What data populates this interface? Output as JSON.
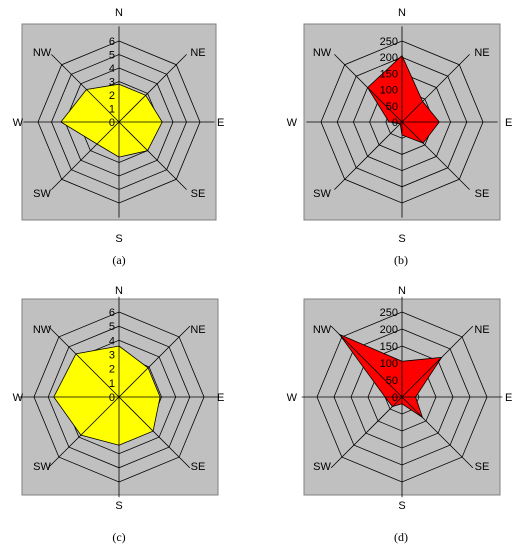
{
  "chart_data": [
    {
      "type": "radar",
      "panel_label": "(a)",
      "categories": [
        "N",
        "NE",
        "E",
        "SE",
        "S",
        "SW",
        "W",
        "NW"
      ],
      "values": [
        2.8,
        2.8,
        3.2,
        3.0,
        2.6,
        2.3,
        4.3,
        3.4
      ],
      "ticks": [
        "0",
        "1",
        "2",
        "3",
        "4",
        "5",
        "6"
      ],
      "rmax": 6,
      "fill": "#ffff00",
      "stroke": "#000000"
    },
    {
      "type": "radar",
      "panel_label": "(b)",
      "categories": [
        "N",
        "NE",
        "E",
        "SE",
        "S",
        "SW",
        "W",
        "NW"
      ],
      "values": [
        205,
        90,
        115,
        92,
        40,
        8,
        40,
        150
      ],
      "ticks": [
        "0",
        "50",
        "100",
        "150",
        "200",
        "250"
      ],
      "rmax": 250,
      "fill": "#ff0000",
      "stroke": "#000000"
    },
    {
      "type": "radar",
      "panel_label": "(c)",
      "categories": [
        "N",
        "NE",
        "E",
        "SE",
        "S",
        "SW",
        "W",
        "NW"
      ],
      "values": [
        3.6,
        2.9,
        2.9,
        3.4,
        3.4,
        3.8,
        4.6,
        4.3
      ],
      "ticks": [
        "0",
        "1",
        "2",
        "3",
        "4",
        "5",
        "6"
      ],
      "rmax": 6,
      "fill": "#ffff00",
      "stroke": "#000000"
    },
    {
      "type": "radar",
      "panel_label": "(d)",
      "categories": [
        "N",
        "NE",
        "E",
        "SE",
        "S",
        "SW",
        "W",
        "NW"
      ],
      "values": [
        105,
        165,
        40,
        85,
        20,
        40,
        50,
        260
      ],
      "ticks": [
        "0",
        "50",
        "100",
        "150",
        "200",
        "250"
      ],
      "rmax": 250,
      "fill": "#ff0000",
      "stroke": "#000000"
    }
  ]
}
